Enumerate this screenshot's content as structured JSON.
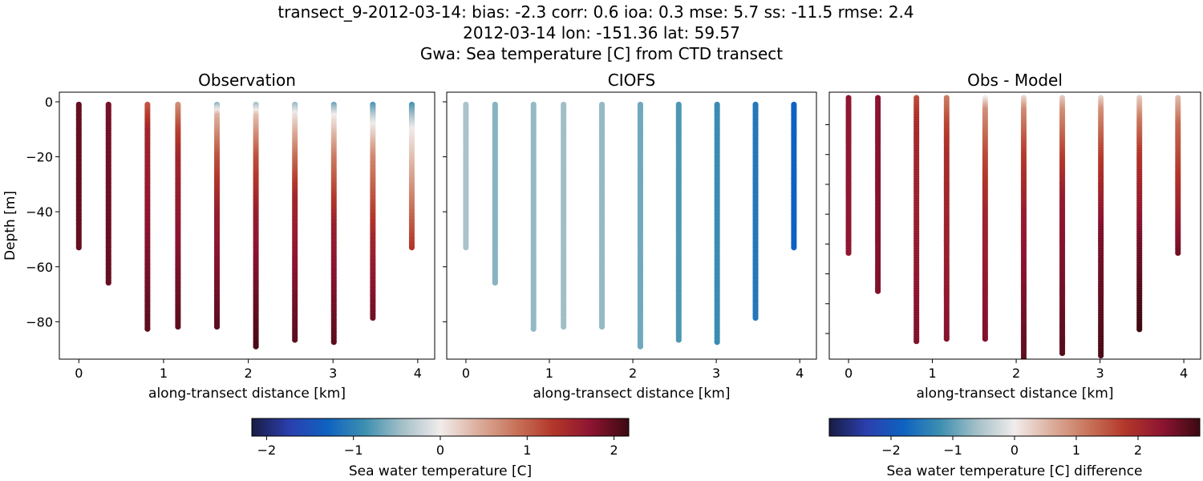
{
  "title_lines": [
    "transect_9-2012-03-14: bias: -2.3  corr: 0.6  ioa: 0.3  mse: 5.7  ss: -11.5  rmse: 2.4",
    "2012-03-14 lon: -151.36 lat: 59.57",
    "Gwa: Sea temperature [C] from CTD transect"
  ],
  "colormap": {
    "name": "balance",
    "stops": [
      "#181c43",
      "#2b3fae",
      "#0e62c0",
      "#3d8fb0",
      "#a5c0c8",
      "#f1ecec",
      "#dcae9c",
      "#c8735a",
      "#b2362a",
      "#8c1430",
      "#3c0912"
    ]
  },
  "chart_data": [
    {
      "type": "scatter",
      "title": "Observation",
      "xlabel": "along-transect distance [km]",
      "ylabel": "Depth [m]",
      "xlim": [
        -0.23,
        4.2
      ],
      "ylim": [
        -93.6,
        3.5
      ],
      "xticks": [
        "0",
        "1",
        "2",
        "3",
        "4"
      ],
      "yticks": [
        0,
        -20,
        -40,
        -60,
        -80
      ],
      "ytick_labels": [
        "0",
        "−20",
        "−40",
        "−60",
        "−80"
      ],
      "colorbar": 0,
      "field": "obs"
    },
    {
      "type": "scatter",
      "title": "CIOFS",
      "xlabel": "along-transect distance [km]",
      "xlim": [
        -0.23,
        4.2
      ],
      "ylim": [
        -93.6,
        3.5
      ],
      "xticks": [
        "0",
        "1",
        "2",
        "3",
        "4"
      ],
      "yticks": [
        0,
        -20,
        -40,
        -60,
        -80
      ],
      "colorbar": 0,
      "field": "model"
    },
    {
      "type": "scatter",
      "title": "Obs - Model",
      "xlabel": "along-transect distance [km]",
      "xlim": [
        -0.23,
        4.2
      ],
      "ylim": [
        -88.6,
        0.9
      ],
      "xticks": [
        "0",
        "1",
        "2",
        "3",
        "4"
      ],
      "yticks": [
        -10,
        -20,
        -30,
        -40,
        -50,
        -60,
        -70,
        -80
      ],
      "colorbar": 1,
      "field": "diff"
    }
  ],
  "profiles": [
    {
      "distance_km": 0.0,
      "max_depth_m": 53,
      "obs": [
        [
          0,
          1.95
        ],
        [
          53,
          1.95
        ]
      ],
      "model": -0.4
    },
    {
      "distance_km": 0.35,
      "max_depth_m": 66,
      "obs": [
        [
          0,
          1.85
        ],
        [
          66,
          1.95
        ]
      ],
      "model": -0.55
    },
    {
      "distance_km": 0.81,
      "max_depth_m": 83,
      "obs": [
        [
          0,
          1.0
        ],
        [
          10,
          1.5
        ],
        [
          40,
          1.7
        ],
        [
          83,
          2.0
        ]
      ],
      "model": -0.5
    },
    {
      "distance_km": 1.17,
      "max_depth_m": 82,
      "obs": [
        [
          0,
          0.6
        ],
        [
          10,
          1.2
        ],
        [
          20,
          1.5
        ],
        [
          82,
          2.0
        ]
      ],
      "model": -0.45
    },
    {
      "distance_km": 1.63,
      "max_depth_m": 82,
      "obs": [
        [
          0,
          -0.7
        ],
        [
          5,
          0.4
        ],
        [
          20,
          1.1
        ],
        [
          40,
          1.6
        ],
        [
          82,
          2.0
        ]
      ],
      "model": -0.5
    },
    {
      "distance_km": 2.09,
      "max_depth_m": 89,
      "obs": [
        [
          0,
          -0.6
        ],
        [
          5,
          0.3
        ],
        [
          20,
          1.1
        ],
        [
          40,
          1.6
        ],
        [
          89,
          2.1
        ]
      ],
      "model": -0.65
    },
    {
      "distance_km": 2.55,
      "max_depth_m": 87,
      "obs": [
        [
          0,
          -0.6
        ],
        [
          5,
          0.1
        ],
        [
          20,
          0.9
        ],
        [
          35,
          1.5
        ],
        [
          87,
          2.0
        ]
      ],
      "model": -0.8
    },
    {
      "distance_km": 3.01,
      "max_depth_m": 88,
      "obs": [
        [
          0,
          -0.8
        ],
        [
          5,
          0.0
        ],
        [
          20,
          0.8
        ],
        [
          45,
          1.6
        ],
        [
          88,
          2.0
        ]
      ],
      "model": -0.9
    },
    {
      "distance_km": 3.47,
      "max_depth_m": 79,
      "obs": [
        [
          0,
          -0.9
        ],
        [
          8,
          0.0
        ],
        [
          20,
          0.7
        ],
        [
          50,
          1.5
        ],
        [
          79,
          1.9
        ]
      ],
      "model": -1.1
    },
    {
      "distance_km": 3.93,
      "max_depth_m": 53,
      "obs": [
        [
          0,
          -0.9
        ],
        [
          10,
          0.0
        ],
        [
          30,
          0.6
        ],
        [
          53,
          1.3
        ]
      ],
      "model": -1.3
    }
  ],
  "colorbars": [
    {
      "label": "Sea water temperature [C]",
      "range": [
        -2.17,
        2.17
      ],
      "ticks": [
        -2,
        -1,
        0,
        1,
        2
      ],
      "tick_labels": [
        "−2",
        "−1",
        "0",
        "1",
        "2"
      ]
    },
    {
      "label": "Sea water temperature [C] difference",
      "range": [
        -3.0,
        3.0
      ],
      "ticks": [
        -2,
        -1,
        0,
        1,
        2
      ],
      "tick_labels": [
        "−2",
        "−1",
        "0",
        "1",
        "2"
      ]
    }
  ]
}
